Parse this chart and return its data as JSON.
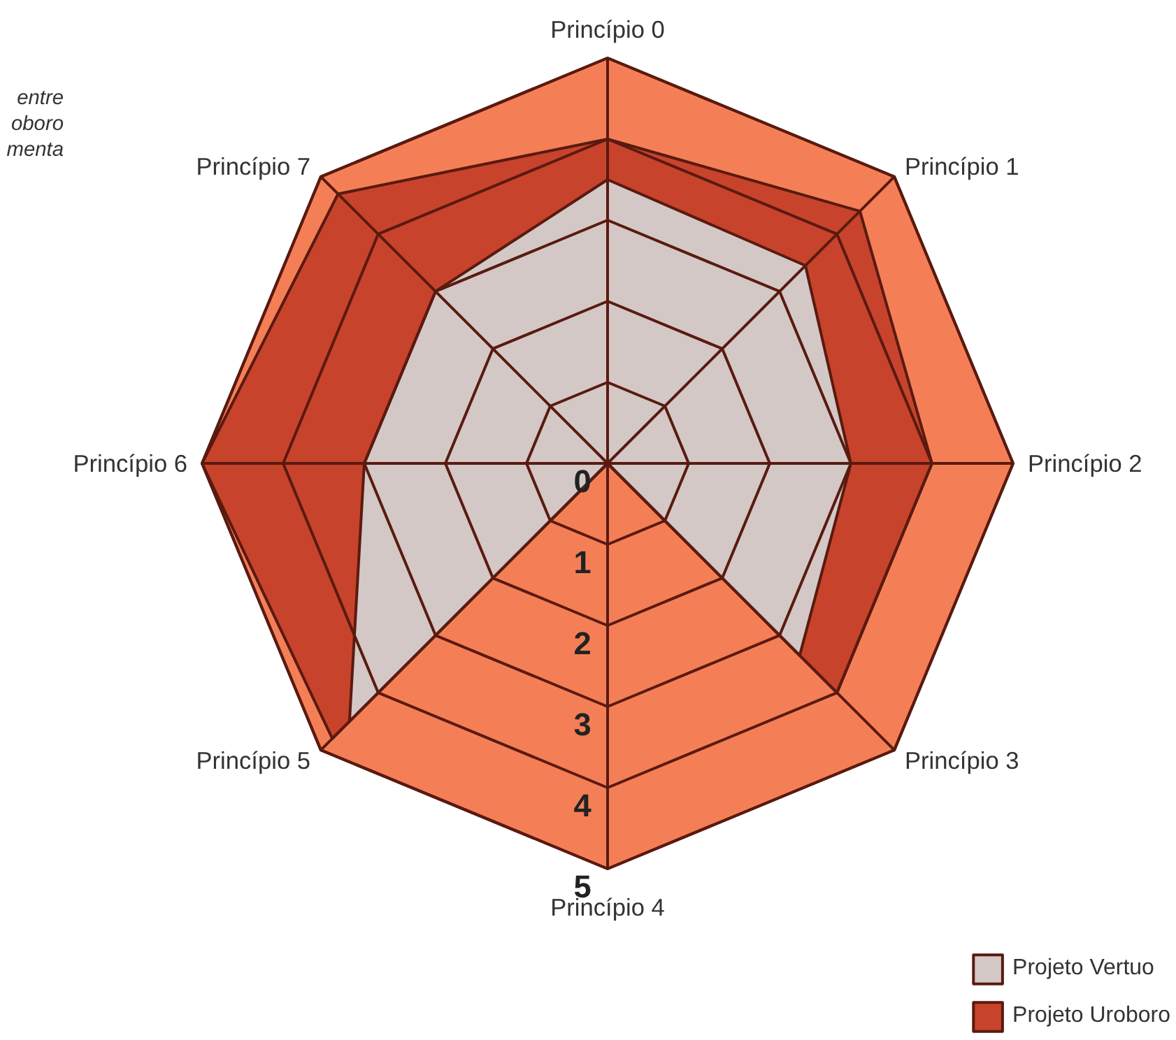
{
  "chart_data": {
    "type": "radar",
    "categories": [
      "Princípio 0",
      "Princípio 1",
      "Princípio 2",
      "Princípio 3",
      "Princípio 4",
      "Princípio 5",
      "Princípio 6",
      "Princípio 7"
    ],
    "series": [
      {
        "name": "Projeto Uroboro",
        "color": "#c8432b",
        "values": [
          4,
          4.4,
          4,
          4,
          0,
          4.8,
          5,
          4.7
        ]
      },
      {
        "name": "Projeto Vertuo",
        "color": "#d3c8c6",
        "values": [
          3.5,
          3.45,
          3,
          3.35,
          0,
          4.5,
          3,
          3
        ]
      }
    ],
    "ylim": [
      0,
      5
    ],
    "yticks": [
      0,
      1,
      2,
      3,
      4,
      5
    ],
    "grid": true,
    "legend": "bottom right",
    "annotations": [
      "entre\noboro\nmenta"
    ]
  }
}
